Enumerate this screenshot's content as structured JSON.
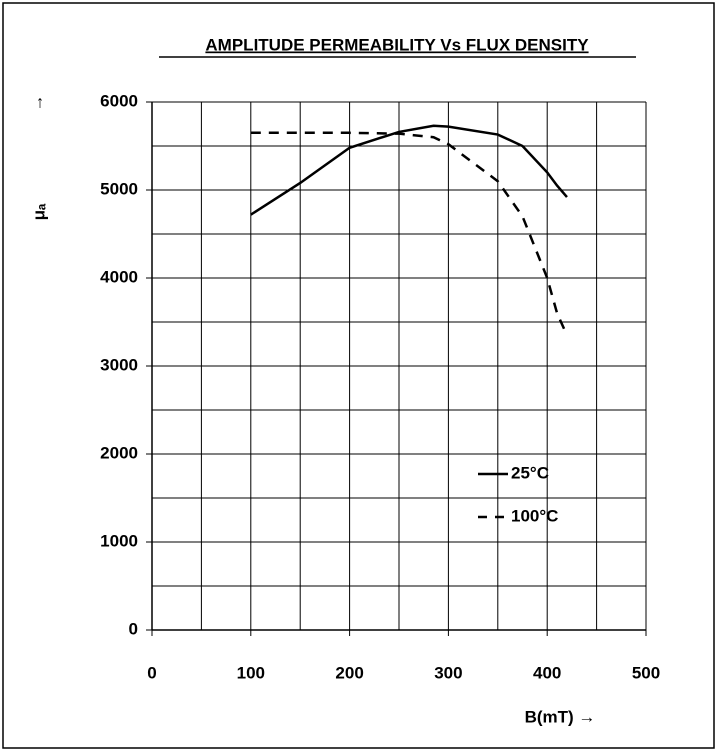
{
  "chart_data": {
    "type": "line",
    "title": "AMPLITUDE PERMEABILITY  Vs FLUX DENSITY",
    "x_label": "B(mT)  →",
    "y_label": "μₐ",
    "y_arrow": "↑",
    "x": [
      100,
      150,
      200,
      250,
      285,
      300,
      350,
      375,
      400,
      410,
      420
    ],
    "series": [
      {
        "name": "25°C",
        "color": "#000000",
        "dash": "solid",
        "values": [
          4720,
          5080,
          5480,
          5660,
          5730,
          5720,
          5630,
          5500,
          5200,
          5050,
          4920
        ]
      },
      {
        "name": "100°C",
        "color": "#000000",
        "dash": "dashed",
        "values": [
          5650,
          5650,
          5650,
          5640,
          5600,
          5520,
          5100,
          4700,
          4000,
          3600,
          3350
        ]
      }
    ],
    "xlim": [
      0,
      500
    ],
    "ylim": [
      0,
      6000
    ],
    "xticks": [
      0,
      100,
      200,
      300,
      400,
      500
    ],
    "yticks": [
      0,
      1000,
      2000,
      3000,
      4000,
      5000,
      6000
    ],
    "xgrid": [
      0,
      50,
      100,
      150,
      200,
      250,
      300,
      350,
      400,
      450,
      500
    ],
    "ygrid": [
      0,
      500,
      1000,
      1500,
      2000,
      2500,
      3000,
      3500,
      4000,
      4500,
      5000,
      5500,
      6000
    ],
    "grid": true,
    "legend": "lower right"
  }
}
